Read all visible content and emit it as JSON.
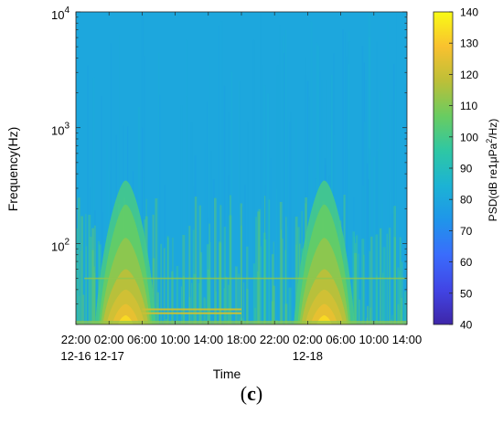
{
  "figure_caption": {
    "open": "(",
    "letter": "c",
    "close": ")"
  },
  "chart_data": {
    "type": "heatmap",
    "title": "",
    "xlabel": "Time",
    "ylabel": "Frequency(Hz)",
    "y_scale": "log",
    "ylim": [
      20,
      10000
    ],
    "y_ticks": [
      {
        "value": 100,
        "base": "10",
        "exp": "2"
      },
      {
        "value": 1000,
        "base": "10",
        "exp": "3"
      },
      {
        "value": 10000,
        "base": "10",
        "exp": "4"
      }
    ],
    "x_range_hours": [
      0,
      40
    ],
    "x_ticks": [
      {
        "hour": 0,
        "time": "22:00",
        "date": "12-16"
      },
      {
        "hour": 4,
        "time": "02:00",
        "date": "12-17"
      },
      {
        "hour": 8,
        "time": "06:00",
        "date": ""
      },
      {
        "hour": 12,
        "time": "10:00",
        "date": ""
      },
      {
        "hour": 16,
        "time": "14:00",
        "date": ""
      },
      {
        "hour": 20,
        "time": "18:00",
        "date": ""
      },
      {
        "hour": 24,
        "time": "22:00",
        "date": ""
      },
      {
        "hour": 28,
        "time": "02:00",
        "date": "12-18"
      },
      {
        "hour": 32,
        "time": "06:00",
        "date": ""
      },
      {
        "hour": 36,
        "time": "10:00",
        "date": ""
      },
      {
        "hour": 40,
        "time": "14:00",
        "date": ""
      }
    ],
    "colorbar": {
      "label_parts": [
        "PSD(dB re1μPa",
        "2",
        "/Hz)"
      ],
      "range": [
        40,
        140
      ],
      "ticks": [
        40,
        50,
        60,
        70,
        80,
        90,
        100,
        110,
        120,
        130,
        140
      ],
      "colormap": "parula",
      "colors": [
        "#3e26a8",
        "#4145e5",
        "#3a6cfc",
        "#1f95ea",
        "#1cb3d4",
        "#2ec7a4",
        "#69cc61",
        "#bcbf38",
        "#f9c12f",
        "#f9fb15"
      ]
    },
    "background_level_db": 80,
    "features": [
      {
        "name": "night-1",
        "center_hour": 6,
        "peak_db": 126,
        "top_freq_hz": 350
      },
      {
        "name": "night-2",
        "center_hour": 30,
        "peak_db": 126,
        "top_freq_hz": 350
      },
      {
        "name": "tonal-line",
        "freq_hz": 50,
        "level_db": 112
      },
      {
        "name": "band-lines",
        "freqs_hz": [
          25,
          27
        ],
        "hour_range": [
          8,
          20
        ],
        "level_db": 120
      }
    ]
  }
}
